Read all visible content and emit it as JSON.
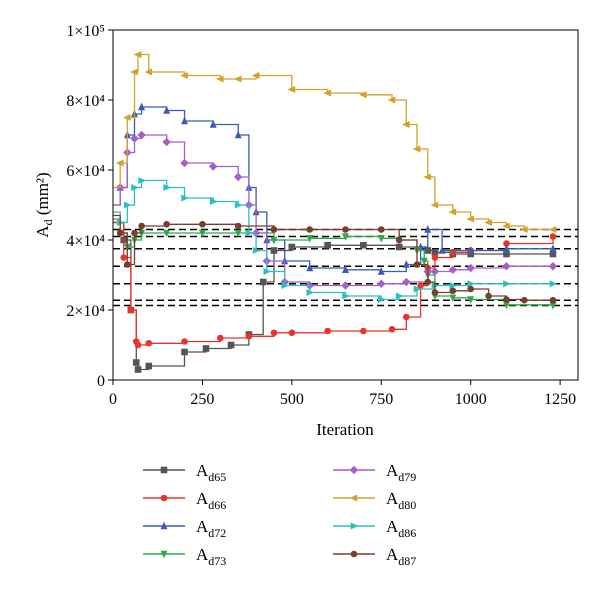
{
  "chart_data": {
    "type": "line",
    "xlabel": "Iteration",
    "ylabel_main": "A",
    "ylabel_sub": "d",
    "ylabel_unit": "(mm²)",
    "xlim": [
      0,
      1300
    ],
    "ylim": [
      0,
      100000
    ],
    "x_ticks": [
      0,
      250,
      500,
      750,
      1000,
      1250
    ],
    "y_ticks": [
      {
        "value": 0,
        "label": "0"
      },
      {
        "value": 20000,
        "label": "2×10⁴"
      },
      {
        "value": 40000,
        "label": "4×10⁴"
      },
      {
        "value": 60000,
        "label": "6×10⁴"
      },
      {
        "value": 80000,
        "label": "8×10⁴"
      },
      {
        "value": 100000,
        "label": "1×10⁵"
      }
    ],
    "reference_lines": [
      43000,
      41000,
      37500,
      32500,
      27500,
      22800,
      21300
    ],
    "series": [
      {
        "name_main": "A",
        "name_sub": "d65",
        "color": "#555555",
        "marker": "square",
        "x": [
          0,
          30,
          50,
          65,
          70,
          100,
          200,
          260,
          330,
          380,
          420,
          450,
          500,
          600,
          700,
          800,
          880,
          900,
          950,
          1000,
          1100,
          1230
        ],
        "y": [
          45000,
          40000,
          20000,
          5000,
          3000,
          4000,
          8000,
          9000,
          10000,
          13000,
          28000,
          37000,
          38000,
          38500,
          38500,
          38000,
          37000,
          36500,
          36000,
          36000,
          36000,
          36000
        ]
      },
      {
        "name_main": "A",
        "name_sub": "d66",
        "color": "#e8352b",
        "marker": "circle",
        "x": [
          0,
          30,
          50,
          65,
          70,
          100,
          200,
          300,
          380,
          450,
          500,
          600,
          700,
          780,
          820,
          860,
          880,
          900,
          950,
          1000,
          1100,
          1230
        ],
        "y": [
          45000,
          35000,
          20000,
          11000,
          10000,
          10500,
          11000,
          12000,
          12500,
          13500,
          13500,
          14000,
          14000,
          14500,
          18000,
          27000,
          32000,
          35000,
          36500,
          37000,
          39000,
          41000
        ]
      },
      {
        "name_main": "A",
        "name_sub": "d72",
        "color": "#3b5bb5",
        "marker": "triangle-up",
        "x": [
          0,
          20,
          40,
          60,
          80,
          150,
          200,
          280,
          350,
          380,
          400,
          430,
          480,
          550,
          650,
          750,
          820,
          860,
          880,
          920,
          1000,
          1100,
          1230
        ],
        "y": [
          50000,
          55000,
          70000,
          76000,
          78000,
          77000,
          74000,
          73000,
          70000,
          55000,
          48000,
          40000,
          34000,
          32000,
          31500,
          31000,
          33000,
          38000,
          43000,
          37000,
          37000,
          37500,
          37500
        ]
      },
      {
        "name_main": "A",
        "name_sub": "d73",
        "color": "#2dab4a",
        "marker": "triangle-down",
        "x": [
          0,
          20,
          40,
          60,
          80,
          150,
          250,
          350,
          450,
          550,
          650,
          750,
          800,
          850,
          870,
          880,
          900,
          950,
          1000,
          1100,
          1230
        ],
        "y": [
          46000,
          42000,
          38000,
          40000,
          42000,
          42000,
          42000,
          42000,
          40000,
          40500,
          41000,
          40500,
          40000,
          37000,
          34000,
          30000,
          24000,
          23500,
          23000,
          21500,
          21300
        ]
      },
      {
        "name_main": "A",
        "name_sub": "d79",
        "color": "#a55fc9",
        "marker": "diamond",
        "x": [
          0,
          20,
          40,
          60,
          80,
          150,
          200,
          280,
          350,
          380,
          400,
          430,
          480,
          550,
          650,
          750,
          820,
          880,
          900,
          950,
          1000,
          1100,
          1230
        ],
        "y": [
          50000,
          55000,
          65000,
          69000,
          70000,
          68000,
          62000,
          61000,
          58000,
          50000,
          42000,
          34000,
          28000,
          27000,
          27000,
          27500,
          28000,
          31000,
          31000,
          31500,
          32000,
          32500,
          32500
        ]
      },
      {
        "name_main": "A",
        "name_sub": "d80",
        "color": "#d4a12a",
        "marker": "triangle-left",
        "x": [
          0,
          20,
          40,
          60,
          70,
          100,
          200,
          300,
          350,
          400,
          500,
          600,
          700,
          780,
          820,
          850,
          880,
          900,
          950,
          1000,
          1050,
          1100,
          1150,
          1230
        ],
        "y": [
          55000,
          62000,
          75000,
          88000,
          93000,
          88000,
          87000,
          86000,
          86000,
          87000,
          83000,
          82000,
          81500,
          80000,
          73000,
          66000,
          58000,
          50000,
          48000,
          46000,
          45000,
          44000,
          43000,
          43000
        ]
      },
      {
        "name_main": "A",
        "name_sub": "d86",
        "color": "#2bbfbf",
        "marker": "triangle-right",
        "x": [
          0,
          20,
          40,
          60,
          80,
          150,
          200,
          280,
          350,
          380,
          400,
          430,
          480,
          550,
          650,
          750,
          800,
          850,
          900,
          950,
          1000,
          1100,
          1230
        ],
        "y": [
          48000,
          45000,
          50000,
          55000,
          57000,
          55000,
          52000,
          51000,
          50000,
          42000,
          37000,
          31000,
          27000,
          25000,
          24000,
          23000,
          24000,
          26000,
          27000,
          27000,
          27500,
          27500,
          27500
        ]
      },
      {
        "name_main": "A",
        "name_sub": "d87",
        "color": "#7a3d2e",
        "marker": "circle",
        "x": [
          0,
          20,
          40,
          60,
          80,
          150,
          250,
          350,
          450,
          550,
          650,
          750,
          800,
          850,
          880,
          900,
          950,
          1000,
          1050,
          1100,
          1150,
          1230
        ],
        "y": [
          47000,
          42000,
          33000,
          42000,
          44000,
          44500,
          44500,
          44000,
          43000,
          43000,
          43000,
          43000,
          40000,
          33000,
          28000,
          25000,
          25500,
          26000,
          24000,
          23000,
          22800,
          22800
        ]
      }
    ]
  }
}
